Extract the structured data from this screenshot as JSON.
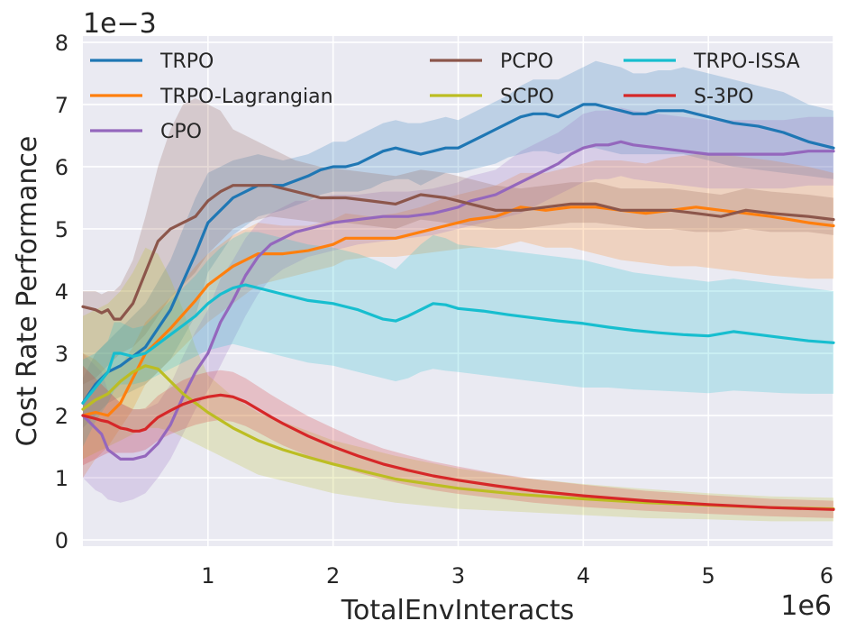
{
  "chart_data": {
    "type": "line",
    "title": "",
    "xlabel": "TotalEnvInteracts",
    "ylabel": "Cost Rate Performance",
    "x_multiplier_label": "1e6",
    "y_multiplier_label": "1e−3",
    "xlim": [
      0.0,
      6.0
    ],
    "ylim": [
      -0.1,
      8.1
    ],
    "x_ticks": [
      1,
      2,
      3,
      4,
      5,
      6
    ],
    "x_tick_labels": [
      "1",
      "2",
      "3",
      "4",
      "5",
      "6"
    ],
    "y_ticks": [
      0,
      1,
      2,
      3,
      4,
      5,
      6,
      7,
      8
    ],
    "y_tick_labels": [
      "0",
      "1",
      "2",
      "3",
      "4",
      "5",
      "6",
      "7",
      "8"
    ],
    "grid": true,
    "legend_position": "top",
    "series": [
      {
        "name": "TRPO",
        "color": "#1f77b4",
        "x": [
          0.0,
          0.1,
          0.2,
          0.3,
          0.5,
          0.7,
          0.9,
          1.0,
          1.2,
          1.4,
          1.6,
          1.8,
          1.9,
          2.0,
          2.1,
          2.2,
          2.3,
          2.4,
          2.5,
          2.6,
          2.7,
          2.8,
          2.9,
          3.0,
          3.1,
          3.2,
          3.3,
          3.4,
          3.5,
          3.6,
          3.7,
          3.8,
          3.9,
          4.0,
          4.1,
          4.2,
          4.3,
          4.4,
          4.5,
          4.6,
          4.7,
          4.8,
          4.9,
          5.0,
          5.2,
          5.4,
          5.6,
          5.8,
          6.0
        ],
        "y": [
          2.2,
          2.5,
          2.7,
          2.8,
          3.1,
          3.7,
          4.6,
          5.1,
          5.5,
          5.7,
          5.7,
          5.85,
          5.95,
          6.0,
          6.0,
          6.05,
          6.15,
          6.25,
          6.3,
          6.25,
          6.2,
          6.25,
          6.3,
          6.3,
          6.4,
          6.5,
          6.6,
          6.7,
          6.8,
          6.85,
          6.85,
          6.8,
          6.9,
          7.0,
          7.0,
          6.95,
          6.9,
          6.85,
          6.85,
          6.9,
          6.9,
          6.9,
          6.85,
          6.8,
          6.7,
          6.65,
          6.55,
          6.4,
          6.3
        ],
        "lower": [
          1.8,
          2.0,
          2.2,
          2.3,
          2.5,
          2.9,
          3.6,
          4.3,
          4.9,
          5.2,
          5.3,
          5.45,
          5.55,
          5.6,
          5.6,
          5.6,
          5.65,
          5.75,
          5.8,
          5.8,
          5.7,
          5.8,
          5.9,
          5.9,
          5.95,
          6.0,
          6.05,
          6.15,
          6.2,
          6.25,
          6.25,
          6.2,
          6.25,
          6.3,
          6.3,
          6.25,
          6.2,
          6.2,
          6.2,
          6.2,
          6.2,
          6.2,
          6.15,
          6.1,
          6.0,
          5.95,
          5.9,
          5.85,
          5.8
        ],
        "upper": [
          2.6,
          3.0,
          3.2,
          3.4,
          3.8,
          4.5,
          5.5,
          5.9,
          6.1,
          6.2,
          6.1,
          6.2,
          6.3,
          6.4,
          6.4,
          6.5,
          6.6,
          6.7,
          6.75,
          6.7,
          6.7,
          6.75,
          6.8,
          6.75,
          6.85,
          6.95,
          7.05,
          7.15,
          7.3,
          7.4,
          7.4,
          7.4,
          7.5,
          7.6,
          7.7,
          7.65,
          7.6,
          7.5,
          7.5,
          7.55,
          7.55,
          7.6,
          7.55,
          7.5,
          7.4,
          7.3,
          7.2,
          7.0,
          6.9
        ]
      },
      {
        "name": "TRPO-Lagrangian",
        "color": "#ff7f0e",
        "x": [
          0.0,
          0.1,
          0.2,
          0.3,
          0.4,
          0.5,
          0.7,
          0.9,
          1.0,
          1.2,
          1.4,
          1.6,
          1.8,
          2.0,
          2.1,
          2.3,
          2.5,
          2.7,
          2.9,
          3.1,
          3.3,
          3.5,
          3.7,
          3.9,
          4.1,
          4.3,
          4.5,
          4.7,
          4.9,
          5.1,
          5.3,
          5.5,
          5.8,
          6.0
        ],
        "y": [
          2.0,
          2.05,
          2.0,
          2.2,
          2.6,
          3.0,
          3.4,
          3.85,
          4.1,
          4.4,
          4.6,
          4.6,
          4.65,
          4.75,
          4.85,
          4.85,
          4.85,
          4.95,
          5.05,
          5.15,
          5.2,
          5.35,
          5.3,
          5.35,
          5.35,
          5.3,
          5.25,
          5.3,
          5.35,
          5.3,
          5.25,
          5.2,
          5.1,
          5.05
        ],
        "lower": [
          1.0,
          1.3,
          1.5,
          1.8,
          2.1,
          2.5,
          2.9,
          3.3,
          3.5,
          3.8,
          4.1,
          4.2,
          4.3,
          4.4,
          4.5,
          4.55,
          4.55,
          4.6,
          4.65,
          4.7,
          4.7,
          4.8,
          4.7,
          4.7,
          4.6,
          4.5,
          4.45,
          4.4,
          4.4,
          4.35,
          4.3,
          4.25,
          4.2,
          4.2
        ],
        "upper": [
          3.0,
          2.9,
          2.7,
          2.8,
          3.1,
          3.5,
          3.9,
          4.4,
          4.6,
          4.9,
          5.1,
          5.05,
          5.05,
          5.15,
          5.25,
          5.2,
          5.25,
          5.35,
          5.5,
          5.6,
          5.7,
          5.9,
          5.9,
          6.0,
          6.1,
          6.1,
          6.05,
          6.15,
          6.2,
          6.2,
          6.15,
          6.1,
          6.0,
          5.9
        ]
      },
      {
        "name": "CPO",
        "color": "#9467bd",
        "x": [
          0.0,
          0.1,
          0.15,
          0.2,
          0.3,
          0.4,
          0.5,
          0.6,
          0.7,
          0.8,
          0.9,
          1.0,
          1.1,
          1.2,
          1.3,
          1.4,
          1.5,
          1.6,
          1.7,
          1.8,
          1.9,
          2.0,
          2.2,
          2.4,
          2.6,
          2.8,
          2.9,
          3.0,
          3.1,
          3.2,
          3.3,
          3.4,
          3.5,
          3.6,
          3.7,
          3.8,
          3.9,
          4.0,
          4.1,
          4.2,
          4.3,
          4.4,
          4.6,
          4.8,
          5.0,
          5.2,
          5.4,
          5.6,
          5.8,
          6.0
        ],
        "y": [
          2.0,
          1.8,
          1.7,
          1.45,
          1.3,
          1.3,
          1.35,
          1.55,
          1.85,
          2.3,
          2.7,
          3.0,
          3.5,
          3.85,
          4.25,
          4.55,
          4.75,
          4.85,
          4.95,
          5.0,
          5.05,
          5.1,
          5.15,
          5.2,
          5.2,
          5.25,
          5.3,
          5.35,
          5.45,
          5.5,
          5.55,
          5.65,
          5.75,
          5.85,
          5.95,
          6.05,
          6.2,
          6.3,
          6.35,
          6.35,
          6.4,
          6.35,
          6.3,
          6.25,
          6.2,
          6.2,
          6.2,
          6.2,
          6.25,
          6.25
        ],
        "lower": [
          1.0,
          0.8,
          0.75,
          0.65,
          0.6,
          0.65,
          0.75,
          1.0,
          1.3,
          1.7,
          2.1,
          2.4,
          2.8,
          3.2,
          3.6,
          3.95,
          4.2,
          4.35,
          4.45,
          4.55,
          4.6,
          4.65,
          4.75,
          4.8,
          4.85,
          4.9,
          4.95,
          5.0,
          5.05,
          5.1,
          5.15,
          5.2,
          5.25,
          5.35,
          5.45,
          5.55,
          5.65,
          5.75,
          5.8,
          5.8,
          5.85,
          5.8,
          5.75,
          5.7,
          5.65,
          5.65,
          5.65,
          5.65,
          5.7,
          5.7
        ],
        "upper": [
          3.0,
          2.8,
          2.7,
          2.4,
          2.2,
          2.1,
          2.1,
          2.2,
          2.5,
          2.95,
          3.35,
          3.7,
          4.2,
          4.5,
          4.85,
          5.1,
          5.25,
          5.35,
          5.45,
          5.45,
          5.5,
          5.55,
          5.55,
          5.6,
          5.6,
          5.65,
          5.7,
          5.75,
          5.85,
          5.9,
          5.95,
          6.1,
          6.25,
          6.35,
          6.45,
          6.55,
          6.7,
          6.85,
          6.9,
          6.9,
          6.95,
          6.9,
          6.85,
          6.8,
          6.75,
          6.75,
          6.75,
          6.75,
          6.8,
          6.8
        ]
      },
      {
        "name": "PCPO",
        "color": "#8c564b",
        "x": [
          0.0,
          0.1,
          0.15,
          0.2,
          0.25,
          0.3,
          0.4,
          0.5,
          0.6,
          0.7,
          0.8,
          0.9,
          1.0,
          1.1,
          1.2,
          1.3,
          1.5,
          1.7,
          1.9,
          2.1,
          2.3,
          2.5,
          2.7,
          2.9,
          3.1,
          3.3,
          3.5,
          3.7,
          3.9,
          4.1,
          4.3,
          4.5,
          4.7,
          4.9,
          5.1,
          5.3,
          5.5,
          5.8,
          6.0
        ],
        "y": [
          3.75,
          3.7,
          3.65,
          3.7,
          3.55,
          3.55,
          3.8,
          4.3,
          4.8,
          5.0,
          5.1,
          5.2,
          5.45,
          5.6,
          5.7,
          5.7,
          5.7,
          5.6,
          5.5,
          5.5,
          5.45,
          5.4,
          5.55,
          5.5,
          5.4,
          5.3,
          5.3,
          5.35,
          5.4,
          5.4,
          5.3,
          5.3,
          5.3,
          5.25,
          5.2,
          5.3,
          5.25,
          5.2,
          5.15
        ],
        "lower": [
          2.5,
          2.6,
          2.7,
          2.8,
          2.9,
          3.0,
          3.1,
          3.3,
          3.6,
          3.9,
          4.1,
          4.3,
          4.6,
          4.8,
          5.0,
          5.1,
          5.2,
          5.15,
          5.1,
          5.1,
          5.05,
          5.0,
          5.15,
          5.1,
          5.05,
          5.0,
          5.0,
          5.05,
          5.1,
          5.1,
          5.05,
          5.0,
          5.0,
          4.95,
          4.95,
          5.0,
          4.95,
          4.95,
          4.9
        ],
        "upper": [
          4.0,
          4.0,
          3.95,
          4.0,
          4.0,
          4.1,
          4.5,
          5.2,
          6.0,
          6.6,
          7.0,
          7.1,
          7.0,
          6.9,
          6.6,
          6.5,
          6.3,
          6.1,
          6.0,
          5.95,
          5.9,
          5.85,
          5.95,
          5.9,
          5.8,
          5.7,
          5.65,
          5.7,
          5.75,
          5.75,
          5.65,
          5.65,
          5.65,
          5.6,
          5.55,
          5.65,
          5.6,
          5.55,
          5.5
        ]
      },
      {
        "name": "SCPO",
        "color": "#bcbd22",
        "x": [
          0.0,
          0.1,
          0.2,
          0.3,
          0.4,
          0.5,
          0.6,
          0.7,
          0.8,
          0.9,
          1.0,
          1.2,
          1.4,
          1.6,
          1.8,
          2.0,
          2.5,
          3.0,
          3.5,
          4.0,
          4.5,
          5.0,
          5.5,
          6.0
        ],
        "y": [
          2.1,
          2.25,
          2.35,
          2.55,
          2.7,
          2.8,
          2.75,
          2.55,
          2.35,
          2.2,
          2.05,
          1.8,
          1.6,
          1.45,
          1.33,
          1.22,
          0.98,
          0.83,
          0.73,
          0.66,
          0.6,
          0.56,
          0.52,
          0.5
        ],
        "lower": [
          1.3,
          1.4,
          1.5,
          1.6,
          1.7,
          1.8,
          1.8,
          1.75,
          1.65,
          1.55,
          1.45,
          1.25,
          1.05,
          0.95,
          0.85,
          0.75,
          0.6,
          0.5,
          0.45,
          0.4,
          0.35,
          0.33,
          0.3,
          0.3
        ],
        "upper": [
          3.6,
          3.7,
          3.8,
          4.0,
          4.3,
          4.7,
          4.6,
          4.2,
          3.7,
          3.1,
          2.65,
          2.3,
          2.05,
          1.9,
          1.75,
          1.6,
          1.35,
          1.15,
          1.0,
          0.9,
          0.82,
          0.75,
          0.7,
          0.68
        ]
      },
      {
        "name": "TRPO-ISSA",
        "color": "#17becf",
        "x": [
          0.0,
          0.1,
          0.2,
          0.25,
          0.3,
          0.4,
          0.5,
          0.6,
          0.7,
          0.8,
          0.9,
          1.0,
          1.1,
          1.2,
          1.3,
          1.4,
          1.5,
          1.6,
          1.8,
          2.0,
          2.2,
          2.4,
          2.5,
          2.6,
          2.7,
          2.8,
          2.9,
          3.0,
          3.2,
          3.4,
          3.6,
          3.8,
          4.0,
          4.2,
          4.4,
          4.6,
          4.8,
          5.0,
          5.2,
          5.4,
          5.6,
          5.8,
          6.0
        ],
        "y": [
          2.2,
          2.45,
          2.7,
          3.0,
          3.0,
          2.95,
          3.0,
          3.15,
          3.3,
          3.45,
          3.6,
          3.8,
          3.95,
          4.05,
          4.1,
          4.05,
          4.0,
          3.95,
          3.85,
          3.8,
          3.7,
          3.55,
          3.52,
          3.6,
          3.7,
          3.8,
          3.78,
          3.72,
          3.68,
          3.62,
          3.57,
          3.52,
          3.48,
          3.42,
          3.37,
          3.33,
          3.3,
          3.28,
          3.35,
          3.3,
          3.25,
          3.2,
          3.17
        ],
        "lower": [
          1.5,
          1.9,
          2.2,
          2.4,
          2.5,
          2.5,
          2.55,
          2.65,
          2.75,
          2.85,
          2.95,
          3.05,
          3.1,
          3.15,
          3.1,
          3.05,
          3.0,
          2.95,
          2.85,
          2.8,
          2.7,
          2.6,
          2.55,
          2.6,
          2.7,
          2.75,
          2.72,
          2.7,
          2.65,
          2.6,
          2.55,
          2.5,
          2.45,
          2.45,
          2.42,
          2.4,
          2.38,
          2.36,
          2.4,
          2.38,
          2.36,
          2.35,
          2.35
        ],
        "upper": [
          2.9,
          3.0,
          3.2,
          3.5,
          3.5,
          3.4,
          3.45,
          3.65,
          3.85,
          4.05,
          4.25,
          4.5,
          4.7,
          4.85,
          4.95,
          4.95,
          4.9,
          4.85,
          4.75,
          4.7,
          4.6,
          4.45,
          4.35,
          4.55,
          4.75,
          4.9,
          4.85,
          4.75,
          4.7,
          4.65,
          4.6,
          4.55,
          4.5,
          4.4,
          4.3,
          4.25,
          4.2,
          4.15,
          4.2,
          4.15,
          4.1,
          4.05,
          4.0
        ]
      },
      {
        "name": "S-3PO",
        "color": "#d62728",
        "x": [
          0.0,
          0.1,
          0.15,
          0.2,
          0.25,
          0.3,
          0.35,
          0.4,
          0.45,
          0.5,
          0.55,
          0.6,
          0.7,
          0.8,
          0.9,
          1.0,
          1.1,
          1.2,
          1.3,
          1.4,
          1.5,
          1.6,
          1.8,
          2.0,
          2.2,
          2.4,
          2.6,
          2.8,
          3.0,
          3.3,
          3.6,
          4.0,
          4.5,
          5.0,
          5.5,
          6.0
        ],
        "y": [
          2.0,
          1.95,
          1.92,
          1.9,
          1.85,
          1.8,
          1.78,
          1.75,
          1.75,
          1.78,
          1.88,
          1.97,
          2.08,
          2.18,
          2.25,
          2.3,
          2.33,
          2.3,
          2.22,
          2.1,
          1.98,
          1.87,
          1.67,
          1.5,
          1.35,
          1.22,
          1.12,
          1.03,
          0.96,
          0.87,
          0.79,
          0.71,
          0.63,
          0.57,
          0.52,
          0.49
        ],
        "lower": [
          1.2,
          1.3,
          1.35,
          1.4,
          1.4,
          1.4,
          1.4,
          1.4,
          1.42,
          1.45,
          1.52,
          1.6,
          1.7,
          1.78,
          1.85,
          1.9,
          1.93,
          1.9,
          1.83,
          1.73,
          1.62,
          1.52,
          1.35,
          1.2,
          1.08,
          0.97,
          0.88,
          0.8,
          0.74,
          0.67,
          0.6,
          0.53,
          0.47,
          0.42,
          0.38,
          0.35
        ],
        "upper": [
          2.8,
          2.6,
          2.5,
          2.4,
          2.3,
          2.2,
          2.15,
          2.1,
          2.1,
          2.12,
          2.22,
          2.32,
          2.45,
          2.57,
          2.65,
          2.7,
          2.73,
          2.7,
          2.6,
          2.47,
          2.34,
          2.22,
          1.99,
          1.8,
          1.62,
          1.47,
          1.36,
          1.26,
          1.18,
          1.07,
          0.98,
          0.89,
          0.79,
          0.72,
          0.66,
          0.63
        ]
      }
    ]
  }
}
